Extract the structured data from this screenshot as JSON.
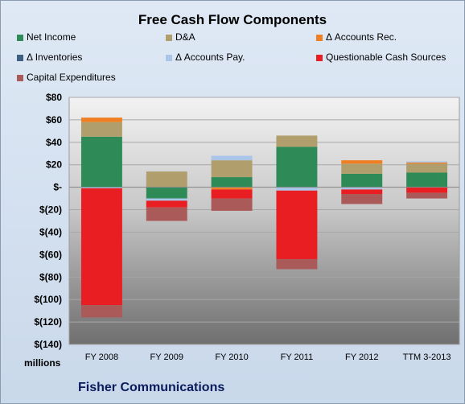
{
  "chart_data": {
    "type": "bar",
    "stacked": true,
    "title": "Free Cash Flow Components",
    "categories": [
      "FY 2008",
      "FY 2009",
      "FY 2010",
      "FY 2011",
      "FY 2012",
      "TTM 3-2013"
    ],
    "series": [
      {
        "name": "Net Income",
        "color": "#2e8b57",
        "values": [
          45,
          -10,
          9,
          36,
          12,
          13
        ]
      },
      {
        "name": "D&A",
        "color": "#b09e6c",
        "values": [
          13,
          14,
          15,
          10,
          9,
          8
        ]
      },
      {
        "name": "Δ Accounts Rec.",
        "color": "#ef7f22",
        "values": [
          4,
          0,
          -2,
          0,
          3,
          1
        ]
      },
      {
        "name": "Δ Inventories",
        "color": "#3c5f82",
        "values": [
          0,
          0,
          0,
          0,
          0,
          0
        ]
      },
      {
        "name": "Δ Accounts Pay.",
        "color": "#a9c6e8",
        "values": [
          -1,
          -2,
          4,
          -3,
          -2,
          1
        ]
      },
      {
        "name": "Questionable Cash Sources",
        "color": "#e81e22",
        "values": [
          -104,
          -6,
          -8,
          -61,
          -4,
          -5
        ]
      },
      {
        "name": "Capital Expenditures",
        "color": "#ab5a5a",
        "values": [
          -11,
          -12,
          -11,
          -9,
          -9,
          -5
        ]
      }
    ],
    "ylabel": "millions",
    "ylim": [
      -140,
      80
    ],
    "yticks": [
      80,
      60,
      40,
      20,
      0,
      -20,
      -40,
      -60,
      -80,
      -100,
      -120,
      -140
    ],
    "ytick_labels": [
      "$80",
      "$60",
      "$40",
      "$20",
      "$-",
      "$(20)",
      "$(40)",
      "$(60)",
      "$(80)",
      "$(100)",
      "$(120)",
      "$(140)"
    ],
    "grid": true,
    "legend_position": "top"
  },
  "footer": {
    "company": "Fisher Communications"
  }
}
